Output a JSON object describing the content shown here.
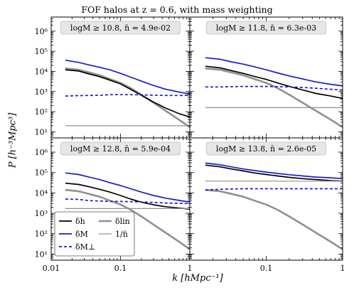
{
  "figure": {
    "title": "FOF halos at  z = 0.6, with mass weighting",
    "ylabel": "P [h⁻³Mpc³]",
    "xlabel": "k [hMpc⁻¹]"
  },
  "legend": {
    "entries": [
      {
        "label": "δh",
        "color": "#000000",
        "dash": "solid"
      },
      {
        "label": "δlin",
        "color": "#909090",
        "dash": "solid"
      },
      {
        "label": "δM",
        "color": "#1a1ad6",
        "dash": "solid"
      },
      {
        "label": "1/n̄",
        "color": "#909090",
        "dash": "thin"
      },
      {
        "label": "δM⊥",
        "color": "#1a1ad6",
        "dash": "dashed"
      }
    ]
  },
  "chart_data": [
    {
      "type": "line",
      "panel": "top-left",
      "annotation": "logM ≥ 10.8,  n̄ = 4.9e-02",
      "xscale": "log",
      "yscale": "log",
      "xlim": [
        0.01,
        1
      ],
      "ylim": [
        5,
        5000000
      ],
      "x": [
        0.016,
        0.025,
        0.035,
        0.05,
        0.07,
        0.1,
        0.14,
        0.2,
        0.3,
        0.45,
        0.7,
        1.0
      ],
      "series": [
        {
          "name": "δlin",
          "values": [
            14000,
            12000,
            9000,
            6500,
            4200,
            2700,
            1500,
            700,
            280,
            110,
            40,
            17
          ]
        },
        {
          "name": "δh",
          "values": [
            12000,
            10500,
            7500,
            5500,
            3700,
            2400,
            1300,
            650,
            300,
            150,
            80,
            55
          ]
        },
        {
          "name": "δM",
          "values": [
            36000,
            28000,
            21000,
            16000,
            12000,
            8000,
            5200,
            3300,
            2000,
            1300,
            950,
            750
          ]
        },
        {
          "name": "δM⊥",
          "values": [
            600,
            630,
            640,
            650,
            700,
            700,
            700,
            680,
            660,
            640,
            640,
            650
          ]
        },
        {
          "name": "1/n̄",
          "values": [
            20,
            20,
            20,
            20,
            20,
            20,
            20,
            20,
            20,
            20,
            20,
            20
          ]
        }
      ]
    },
    {
      "type": "line",
      "panel": "top-right",
      "annotation": "logM ≥ 11.8,  n̄ = 6.3e-03",
      "xscale": "log",
      "yscale": "log",
      "xlim": [
        0.01,
        1
      ],
      "ylim": [
        5,
        5000000
      ],
      "x": [
        0.016,
        0.025,
        0.035,
        0.05,
        0.07,
        0.1,
        0.14,
        0.2,
        0.3,
        0.45,
        0.7,
        1.0
      ],
      "series": [
        {
          "name": "δlin",
          "values": [
            14000,
            12000,
            9000,
            6500,
            4200,
            2700,
            1500,
            700,
            280,
            110,
            40,
            17
          ]
        },
        {
          "name": "δh",
          "values": [
            18000,
            15000,
            11000,
            8000,
            5600,
            4000,
            2700,
            1800,
            1200,
            800,
            600,
            450
          ]
        },
        {
          "name": "δM",
          "values": [
            48000,
            40000,
            30000,
            23000,
            17000,
            12000,
            8500,
            6000,
            4200,
            3000,
            2300,
            1900
          ]
        },
        {
          "name": "δM⊥",
          "values": [
            1700,
            1700,
            1750,
            1800,
            1800,
            1800,
            1750,
            1700,
            1600,
            1450,
            1300,
            1200
          ]
        },
        {
          "name": "1/n̄",
          "values": [
            160,
            160,
            160,
            160,
            160,
            160,
            160,
            160,
            160,
            160,
            160,
            160
          ]
        }
      ]
    },
    {
      "type": "line",
      "panel": "bottom-left",
      "annotation": "logM ≥ 12.8,  n̄ = 5.9e-04",
      "xscale": "log",
      "yscale": "log",
      "xlim": [
        0.01,
        1
      ],
      "ylim": [
        5,
        5000000
      ],
      "x": [
        0.016,
        0.025,
        0.035,
        0.05,
        0.07,
        0.1,
        0.14,
        0.2,
        0.3,
        0.45,
        0.7,
        1.0
      ],
      "series": [
        {
          "name": "δlin",
          "values": [
            14000,
            12000,
            9000,
            6500,
            4200,
            2700,
            1500,
            700,
            280,
            110,
            40,
            17
          ]
        },
        {
          "name": "δh",
          "values": [
            30000,
            26000,
            20000,
            15000,
            11000,
            7500,
            5000,
            3500,
            2600,
            2100,
            1800,
            1600
          ]
        },
        {
          "name": "δM",
          "values": [
            95000,
            80000,
            60000,
            45000,
            32000,
            23000,
            16000,
            11000,
            7500,
            5500,
            4300,
            3600
          ]
        },
        {
          "name": "δM⊥",
          "values": [
            5000,
            4800,
            4200,
            4000,
            3800,
            3800,
            3700,
            3600,
            3400,
            3200,
            3100,
            3000
          ]
        },
        {
          "name": "1/n̄",
          "values": [
            1700,
            1700,
            1700,
            1700,
            1700,
            1700,
            1700,
            1700,
            1700,
            1700,
            1700,
            1700
          ]
        }
      ]
    },
    {
      "type": "line",
      "panel": "bottom-right",
      "annotation": "logM ≥ 13.8,  n̄ = 2.6e-05",
      "xscale": "log",
      "yscale": "log",
      "xlim": [
        0.01,
        1
      ],
      "ylim": [
        5,
        5000000
      ],
      "x": [
        0.016,
        0.025,
        0.035,
        0.05,
        0.07,
        0.1,
        0.14,
        0.2,
        0.3,
        0.45,
        0.7,
        1.0
      ],
      "series": [
        {
          "name": "δlin",
          "values": [
            14000,
            12000,
            9000,
            6500,
            4200,
            2700,
            1500,
            700,
            280,
            110,
            40,
            17
          ]
        },
        {
          "name": "δh",
          "values": [
            230000,
            190000,
            150000,
            120000,
            95000,
            80000,
            68000,
            58000,
            50000,
            45000,
            40000,
            38000
          ]
        },
        {
          "name": "δM",
          "values": [
            290000,
            240000,
            190000,
            150000,
            125000,
            105000,
            90000,
            78000,
            68000,
            60000,
            55000,
            50000
          ]
        },
        {
          "name": "δM⊥",
          "values": [
            14000,
            15000,
            15500,
            16000,
            16000,
            16000,
            16000,
            16000,
            16000,
            16000,
            16000,
            16000
          ]
        },
        {
          "name": "1/n̄",
          "values": [
            38000,
            38000,
            38000,
            38000,
            38000,
            38000,
            38000,
            38000,
            38000,
            38000,
            38000,
            38000
          ]
        }
      ]
    }
  ],
  "styles": {
    "δlin": {
      "color": "#909090",
      "width": 2.6,
      "dash": ""
    },
    "δh": {
      "color": "#000000",
      "width": 1.7,
      "dash": ""
    },
    "δM": {
      "color": "#1a1ad6",
      "width": 1.7,
      "dash": ""
    },
    "δM⊥": {
      "color": "#1a1ad6",
      "width": 1.7,
      "dash": "4,3"
    },
    "1/n̄": {
      "color": "#909090",
      "width": 1.2,
      "dash": ""
    }
  },
  "ticks": {
    "x": [
      {
        "v": 0.01,
        "label": "0.01"
      },
      {
        "v": 0.1,
        "label": "0.1"
      },
      {
        "v": 1,
        "label": "1"
      }
    ],
    "y": [
      {
        "v": 10,
        "label": "10¹"
      },
      {
        "v": 100,
        "label": "10²"
      },
      {
        "v": 1000,
        "label": "10³"
      },
      {
        "v": 10000,
        "label": "10⁴"
      },
      {
        "v": 100000,
        "label": "10⁵"
      },
      {
        "v": 1000000,
        "label": "10⁶"
      }
    ]
  }
}
